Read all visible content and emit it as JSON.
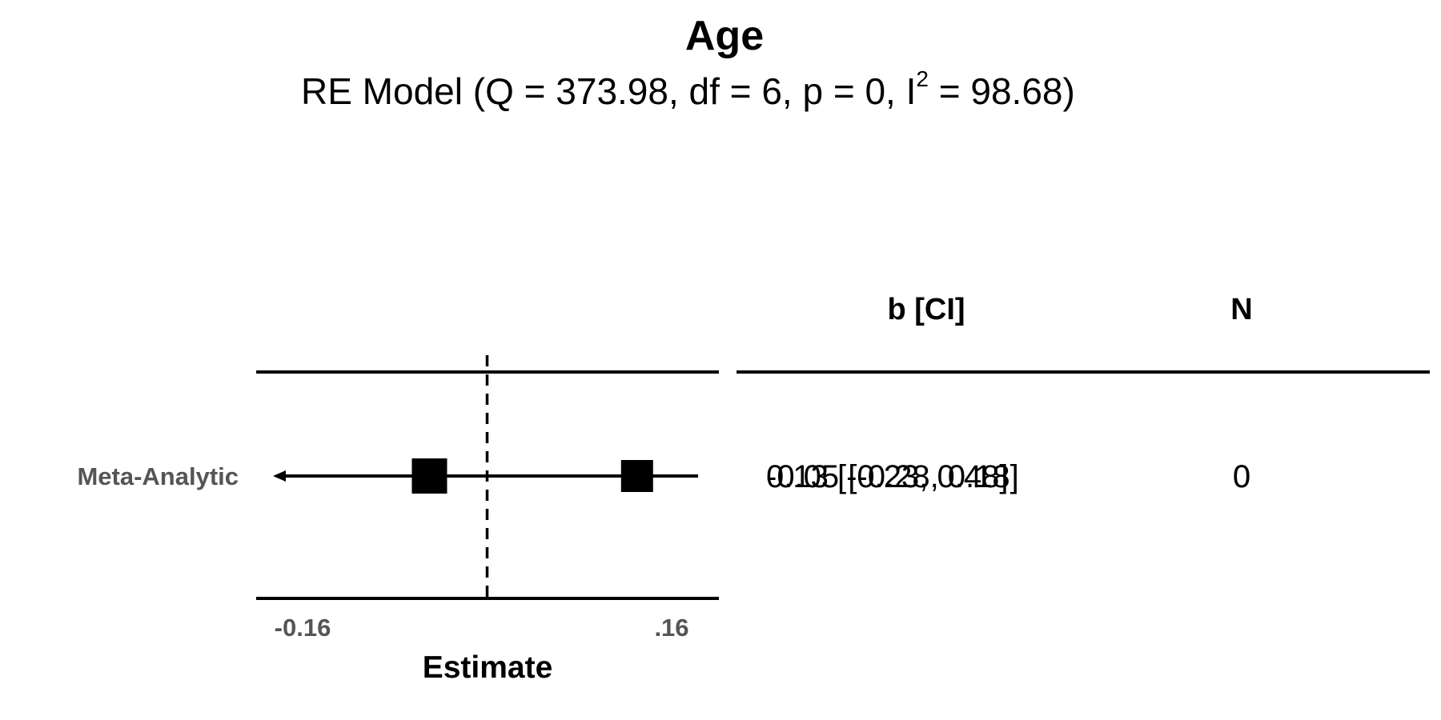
{
  "chart_data": {
    "type": "forest",
    "title": "Age",
    "subtitle": {
      "prefix": "RE Model (Q = 373.98, df = 6, p = 0, I",
      "superscript": "2",
      "suffix": " = 98.68)"
    },
    "xlabel": "Estimate",
    "xlim": [
      -0.2,
      0.25
    ],
    "reference_line": 0,
    "x_ticks": [
      {
        "value": -0.16,
        "label": "-0.16"
      },
      {
        "value": 0.16,
        "label": ".16"
      }
    ],
    "row_label": "Meta-Analytic",
    "column_headers": {
      "estimate_ci": "b [CI]",
      "n": "N"
    },
    "estimates": [
      {
        "b": -0.05,
        "ci_low": -0.28,
        "ci_high": 0.18,
        "text": "-0.05 [-0.28, 0.18]",
        "n": "0"
      },
      {
        "b": 0.13,
        "ci_low": -0.23,
        "ci_high": 0.48,
        "text": "0.13 [-0.23, 0.48]",
        "n": "0"
      }
    ],
    "interval_arrow_left": true
  }
}
